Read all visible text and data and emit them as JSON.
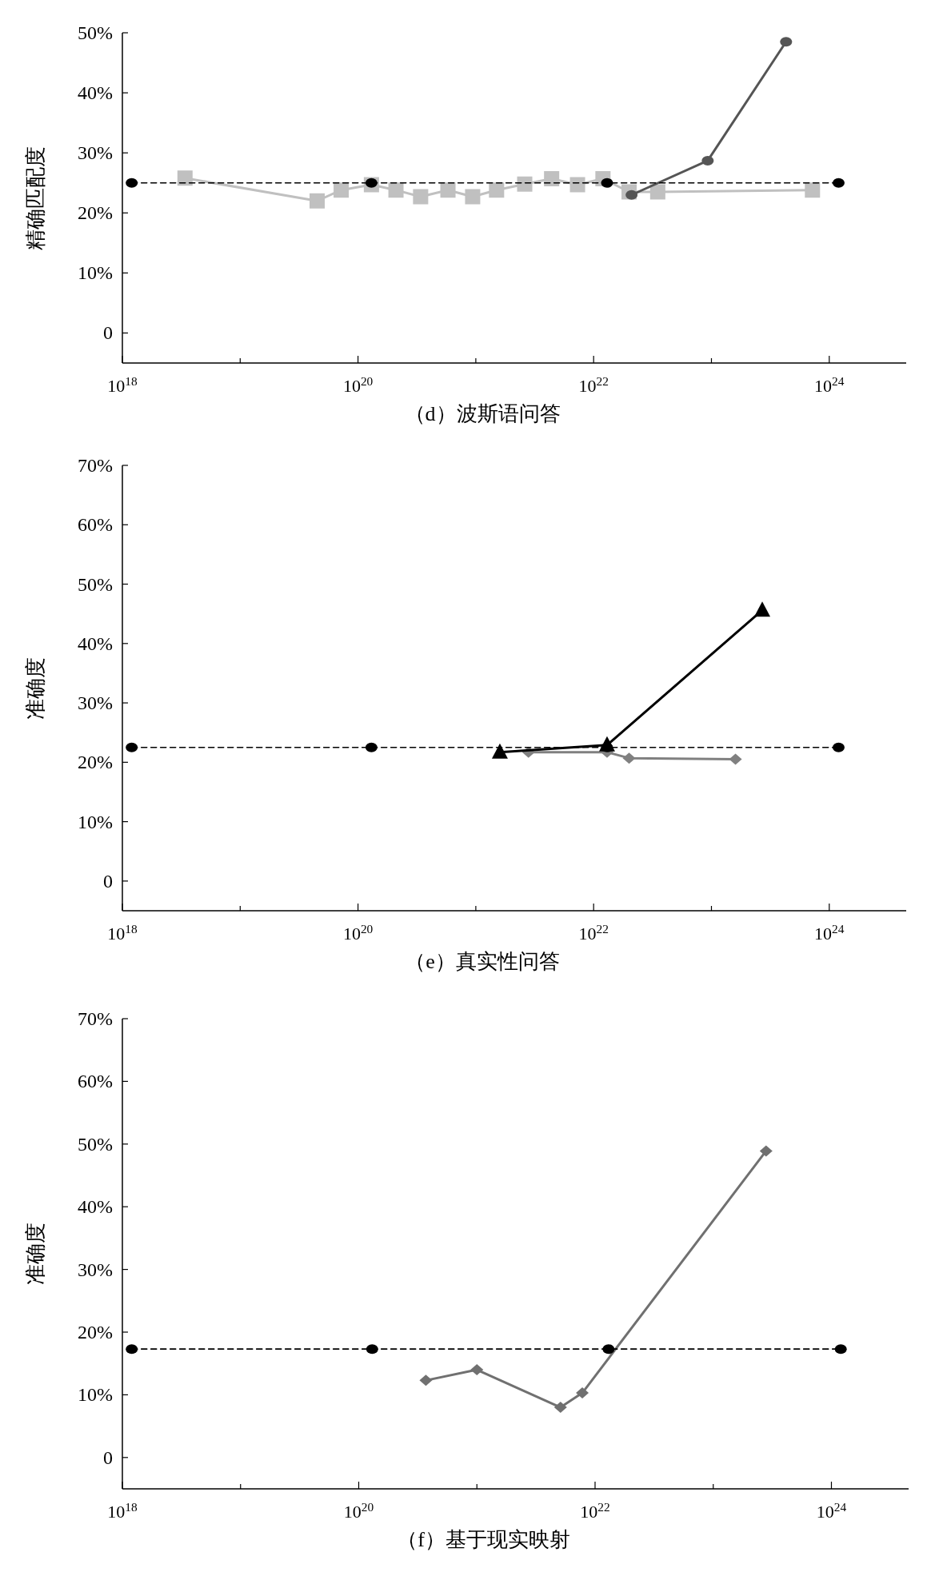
{
  "chart_data": [
    {
      "type": "line",
      "xlabel": "（d）波斯语问答",
      "ylabel": "精确匹配度",
      "log": "x",
      "grid": false,
      "xlim": [
        1e+18,
        4.5e+24
      ],
      "xticks": [
        {
          "value": 1e+18,
          "label": "10$^{18}$"
        },
        {
          "value": 1e+19,
          "label": null
        },
        {
          "value": 1e+20,
          "label": "10$^{20}$"
        },
        {
          "value": 1e+21,
          "label": null
        },
        {
          "value": 1e+22,
          "label": "10$^{22}$"
        },
        {
          "value": 1e+23,
          "label": null
        },
        {
          "value": 1e+24,
          "label": "10$^{24}$"
        }
      ],
      "ylim": [
        -5,
        50
      ],
      "yticks": [
        {
          "value": 0,
          "label": "0"
        },
        {
          "value": 10,
          "label": "10%"
        },
        {
          "value": 20,
          "label": "20%"
        },
        {
          "value": 30,
          "label": "30%"
        },
        {
          "value": 40,
          "label": "40%"
        },
        {
          "value": 50,
          "label": "50%"
        }
      ],
      "series": [
        {
          "color": "#c0c0c0",
          "marker": "square",
          "line_style": "solid",
          "x": [
            3.4e+18,
            4.5e+19,
            7.2e+19,
            1.3e+20,
            2.1e+20,
            3.4e+20,
            5.8e+20,
            9.4e+20,
            1.5e+21,
            2.6e+21,
            4.4e+21,
            7.3e+21,
            1.2e+22,
            2e+22,
            3.5e+22,
            7.2e+23
          ],
          "values": [
            25.8,
            22.0,
            23.8,
            24.7,
            23.8,
            22.7,
            23.8,
            22.7,
            23.8,
            24.8,
            25.7,
            24.7,
            25.7,
            23.5,
            23.5,
            23.8
          ]
        },
        {
          "color": "#555555",
          "marker": "circle",
          "line_style": "solid",
          "x": [
            2.1e+22,
            9.3e+22,
            4.3e+23
          ],
          "values": [
            23.0,
            28.7,
            48.5
          ]
        },
        {
          "color": "#000000",
          "marker": "circle",
          "line_style": "dashed",
          "x": [
            1.2e+18,
            1.3e+20,
            1.3e+22,
            1.2e+24
          ],
          "values": [
            25,
            25,
            25,
            25
          ]
        }
      ]
    },
    {
      "type": "line",
      "xlabel": "（e）真实性问答",
      "ylabel": "准确度",
      "log": "x",
      "grid": false,
      "xlim": [
        1e+18,
        4.5e+24
      ],
      "xticks": [
        {
          "value": 1e+18,
          "label": "10$^{18}$"
        },
        {
          "value": 1e+19,
          "label": null
        },
        {
          "value": 1e+20,
          "label": "10$^{20}$"
        },
        {
          "value": 1e+21,
          "label": null
        },
        {
          "value": 1e+22,
          "label": "10$^{22}$"
        },
        {
          "value": 1e+23,
          "label": null
        },
        {
          "value": 1e+24,
          "label": "10$^{24}$"
        }
      ],
      "ylim": [
        -5,
        70
      ],
      "yticks": [
        {
          "value": 0,
          "label": "0"
        },
        {
          "value": 10,
          "label": "10%"
        },
        {
          "value": 20,
          "label": "20%"
        },
        {
          "value": 30,
          "label": "30%"
        },
        {
          "value": 40,
          "label": "40%"
        },
        {
          "value": 50,
          "label": "50%"
        },
        {
          "value": 60,
          "label": "60%"
        },
        {
          "value": 70,
          "label": "70%"
        }
      ],
      "series": [
        {
          "color": "#808080",
          "marker": "diamond",
          "line_style": "solid",
          "x": [
            2.8e+21,
            1.3e+22,
            2e+22,
            1.6e+23
          ],
          "values": [
            21.7,
            21.7,
            20.7,
            20.5
          ]
        },
        {
          "color": "#000000",
          "marker": "triangle",
          "line_style": "solid",
          "x": [
            1.6e+21,
            1.3e+22,
            2.7e+23
          ],
          "values": [
            21.7,
            22.9,
            45.6
          ]
        },
        {
          "color": "#000000",
          "marker": "circle",
          "line_style": "dashed",
          "x": [
            1.2e+18,
            1.3e+20,
            1.3e+22,
            1.2e+24
          ],
          "values": [
            22.5,
            22.5,
            22.5,
            22.5
          ]
        }
      ]
    },
    {
      "type": "line",
      "xlabel": "（f）基于现实映射",
      "ylabel": "准确度",
      "log": "x",
      "grid": false,
      "xlim": [
        1e+18,
        4.5e+24
      ],
      "xticks": [
        {
          "value": 1e+18,
          "label": "10$^{18}$"
        },
        {
          "value": 1e+19,
          "label": null
        },
        {
          "value": 1e+20,
          "label": "10$^{20}$"
        },
        {
          "value": 1e+21,
          "label": null
        },
        {
          "value": 1e+22,
          "label": "10$^{22}$"
        },
        {
          "value": 1e+23,
          "label": null
        },
        {
          "value": 1e+24,
          "label": "10$^{24}$"
        }
      ],
      "ylim": [
        -5,
        70
      ],
      "yticks": [
        {
          "value": 0,
          "label": "0"
        },
        {
          "value": 10,
          "label": "10%"
        },
        {
          "value": 20,
          "label": "20%"
        },
        {
          "value": 30,
          "label": "30%"
        },
        {
          "value": 40,
          "label": "40%"
        },
        {
          "value": 50,
          "label": "50%"
        },
        {
          "value": 60,
          "label": "60%"
        },
        {
          "value": 70,
          "label": "70%"
        }
      ],
      "series": [
        {
          "color": "#707070",
          "marker": "diamond",
          "line_style": "solid",
          "x": [
            3.7e+20,
            1e+21,
            5.1e+21,
            7.8e+21,
            2.8e+23
          ],
          "values": [
            12.3,
            14.0,
            8.0,
            10.3,
            48.9
          ]
        },
        {
          "color": "#000000",
          "marker": "circle",
          "line_style": "dashed",
          "x": [
            1.2e+18,
            1.3e+20,
            1.3e+22,
            1.2e+24
          ],
          "values": [
            17.3,
            17.3,
            17.3,
            17.3
          ]
        }
      ]
    }
  ]
}
